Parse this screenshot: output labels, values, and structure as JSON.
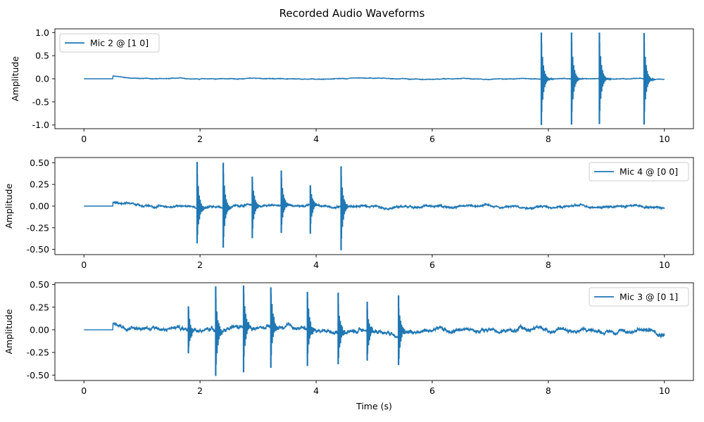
{
  "title": "Recorded Audio Waveforms",
  "chart_data": [
    {
      "type": "line",
      "legend": "Mic 2 @ [1 0]",
      "legend_position": "upper-left",
      "ylabel": "Amplitude",
      "xlabel": "",
      "xlim": [
        -0.5,
        10.5
      ],
      "ylim": [
        -1.08,
        1.08
      ],
      "xticks": [
        "0",
        "2",
        "4",
        "6",
        "8",
        "10"
      ],
      "yticks": [
        "-1.0",
        "-0.5",
        "0.0",
        "0.5",
        "1.0"
      ],
      "onset": 0.5,
      "onset_level": 0.06,
      "noise": 0.007,
      "peaks": [
        {
          "t": 7.88,
          "max": 1.0,
          "min": -1.0
        },
        {
          "t": 8.4,
          "max": 1.0,
          "min": -0.99
        },
        {
          "t": 8.88,
          "max": 1.0,
          "min": -0.98
        },
        {
          "t": 9.65,
          "max": 0.99,
          "min": -0.99
        }
      ]
    },
    {
      "type": "line",
      "legend": "Mic 4 @ [0 0]",
      "legend_position": "upper-right",
      "ylabel": "Amplitude",
      "xlabel": "",
      "xlim": [
        -0.5,
        10.5
      ],
      "ylim": [
        -0.56,
        0.56
      ],
      "xticks": [
        "0",
        "2",
        "4",
        "6",
        "8",
        "10"
      ],
      "yticks": [
        "-0.50",
        "-0.25",
        "0.00",
        "0.25",
        "0.50"
      ],
      "onset": 0.5,
      "onset_level": 0.04,
      "noise": 0.012,
      "peaks": [
        {
          "t": 1.95,
          "max": 0.51,
          "min": -0.43
        },
        {
          "t": 2.4,
          "max": 0.5,
          "min": -0.48
        },
        {
          "t": 2.9,
          "max": 0.34,
          "min": -0.37
        },
        {
          "t": 3.4,
          "max": 0.41,
          "min": -0.31
        },
        {
          "t": 3.9,
          "max": 0.24,
          "min": -0.32
        },
        {
          "t": 4.43,
          "max": 0.46,
          "min": -0.51
        }
      ]
    },
    {
      "type": "line",
      "legend": "Mic 3 @ [0 1]",
      "legend_position": "upper-right",
      "ylabel": "Amplitude",
      "xlabel": "Time (s)",
      "xlim": [
        -0.5,
        10.5
      ],
      "ylim": [
        -0.56,
        0.52
      ],
      "xticks": [
        "0",
        "2",
        "4",
        "6",
        "8",
        "10"
      ],
      "yticks": [
        "-0.50",
        "-0.25",
        "0.00",
        "0.25",
        "0.50"
      ],
      "onset": 0.5,
      "onset_level": 0.06,
      "noise": 0.025,
      "peaks": [
        {
          "t": 1.8,
          "max": 0.26,
          "min": -0.26
        },
        {
          "t": 2.27,
          "max": 0.48,
          "min": -0.51
        },
        {
          "t": 2.75,
          "max": 0.49,
          "min": -0.47
        },
        {
          "t": 3.22,
          "max": 0.47,
          "min": -0.42
        },
        {
          "t": 3.85,
          "max": 0.42,
          "min": -0.4
        },
        {
          "t": 4.38,
          "max": 0.41,
          "min": -0.38
        },
        {
          "t": 4.88,
          "max": 0.31,
          "min": -0.34
        },
        {
          "t": 5.42,
          "max": 0.38,
          "min": -0.39
        }
      ]
    }
  ],
  "colors": {
    "line": "#1f77b4",
    "axes": "#000000",
    "legend_border": "#cccccc"
  }
}
